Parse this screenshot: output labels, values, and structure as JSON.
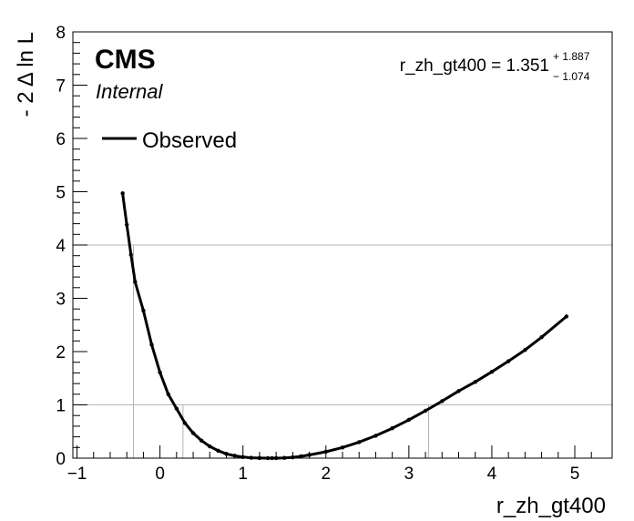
{
  "chart_data": {
    "type": "line",
    "xlabel": "r_zh_gt400",
    "ylabel": "- 2 Δ ln L",
    "xlim": [
      -1.05,
      5.45
    ],
    "ylim": [
      0,
      8
    ],
    "xticks": [
      "−1",
      "0",
      "1",
      "2",
      "3",
      "4",
      "5"
    ],
    "xtick_values": [
      -1,
      0,
      1,
      2,
      3,
      4,
      5
    ],
    "yticks": [
      "0",
      "1",
      "2",
      "3",
      "4",
      "5",
      "6",
      "7",
      "8"
    ],
    "ytick_values": [
      0,
      1,
      2,
      3,
      4,
      5,
      6,
      7,
      8
    ],
    "labels": {
      "experiment": "CMS",
      "status": "Internal"
    },
    "legend": {
      "entries": [
        "Observed"
      ],
      "placement": "top-left"
    },
    "result": {
      "text": "r_zh_gt400 = 1.351",
      "up": "+ 1.887",
      "down": "− 1.074"
    },
    "reference_lines": {
      "horizontal": [
        1,
        4
      ],
      "vertical": [
        -0.32,
        0.277,
        3.238
      ]
    },
    "series": [
      {
        "color": "#000000",
        "x": [
          -0.45,
          -0.4,
          -0.35,
          -0.3,
          -0.2,
          -0.1,
          0.0,
          0.1,
          0.2,
          0.3,
          0.4,
          0.5,
          0.6,
          0.7,
          0.8,
          0.9,
          1.0,
          1.1,
          1.2,
          1.3,
          1.351,
          1.4,
          1.5,
          1.6,
          1.7,
          1.8,
          2.0,
          2.2,
          2.4,
          2.6,
          2.8,
          3.0,
          3.2,
          3.4,
          3.6,
          3.8,
          4.0,
          4.2,
          4.4,
          4.6,
          4.9
        ],
        "y": [
          4.97,
          4.38,
          3.82,
          3.31,
          2.77,
          2.13,
          1.61,
          1.2,
          0.93,
          0.66,
          0.47,
          0.33,
          0.22,
          0.14,
          0.08,
          0.045,
          0.02,
          0.007,
          0.002,
          0.0,
          0.0,
          0.0,
          0.005,
          0.015,
          0.035,
          0.06,
          0.12,
          0.2,
          0.3,
          0.42,
          0.56,
          0.72,
          0.89,
          1.07,
          1.26,
          1.43,
          1.62,
          1.82,
          2.03,
          2.27,
          2.66
        ]
      }
    ]
  }
}
